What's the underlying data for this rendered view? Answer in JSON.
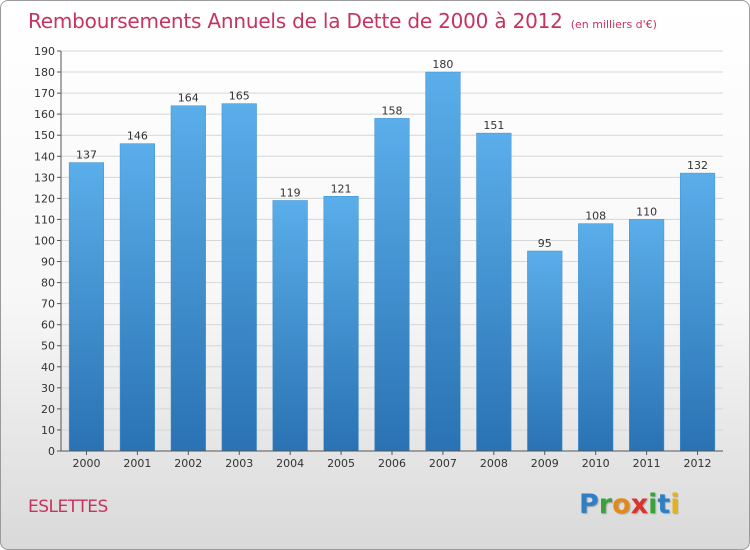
{
  "header": {
    "title": "Remboursements Annuels de la Dette de 2000 à 2012",
    "subtitle": "(en milliers d'€)"
  },
  "commune": "ESLETTES",
  "logo": {
    "letters": [
      {
        "char": "P",
        "color": "#2f7fc4"
      },
      {
        "char": "r",
        "color": "#3aa23a"
      },
      {
        "char": "o",
        "color": "#e08a1e"
      },
      {
        "char": "x",
        "color": "#d8342a"
      },
      {
        "char": "i",
        "color": "#3aa23a"
      },
      {
        "char": "t",
        "color": "#2f7fc4"
      },
      {
        "char": "i",
        "color": "#e0b21e"
      }
    ]
  },
  "colors": {
    "title": "#c8325e",
    "bar_light": "#5aaeea",
    "bar_dark": "#2a72b3",
    "grid": "#d6d6d6"
  },
  "chart_data": {
    "type": "bar",
    "title": "Remboursements Annuels de la Dette de 2000 à 2012",
    "subtitle": "(en milliers d'€)",
    "xlabel": "",
    "ylabel": "",
    "categories": [
      "2000",
      "2001",
      "2002",
      "2003",
      "2004",
      "2005",
      "2006",
      "2007",
      "2008",
      "2009",
      "2010",
      "2011",
      "2012"
    ],
    "values": [
      137,
      146,
      164,
      165,
      119,
      121,
      158,
      180,
      151,
      95,
      108,
      110,
      132
    ],
    "data_labels": [
      "137",
      "146",
      "164",
      "165",
      "119",
      "121",
      "158",
      "180",
      "151",
      "95",
      "108",
      "110",
      "132"
    ],
    "ylim": [
      0,
      190
    ],
    "y_ticks": [
      0,
      10,
      20,
      30,
      40,
      50,
      60,
      70,
      80,
      90,
      100,
      110,
      120,
      130,
      140,
      150,
      160,
      170,
      180,
      190
    ],
    "grid": true,
    "legend": "none"
  }
}
